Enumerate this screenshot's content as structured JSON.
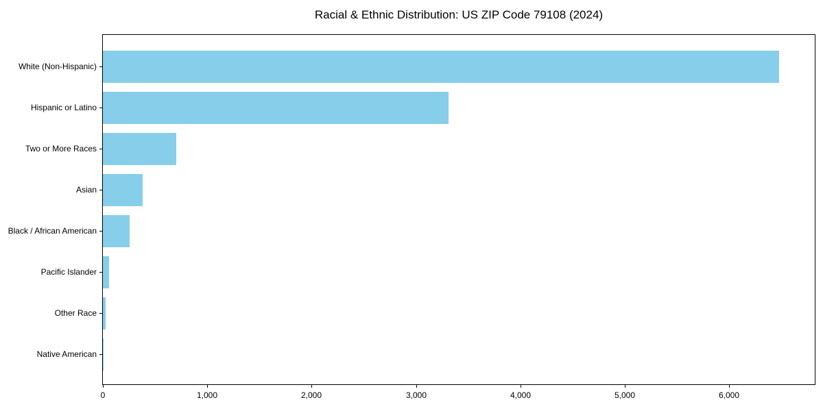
{
  "chart_data": {
    "type": "bar",
    "orientation": "horizontal",
    "title": "Racial & Ethnic Distribution: US ZIP Code 79108 (2024)",
    "categories": [
      "White (Non-Hispanic)",
      "Hispanic or Latino",
      "Two or More Races",
      "Asian",
      "Black / African American",
      "Pacific Islander",
      "Other Race",
      "Native American"
    ],
    "values": [
      6480,
      3310,
      700,
      380,
      256,
      59,
      26,
      7
    ],
    "xlabel": "",
    "ylabel": "",
    "xlim": [
      0,
      6820
    ],
    "x_ticks": [
      0,
      1000,
      2000,
      3000,
      4000,
      5000,
      6000
    ],
    "x_tick_labels": [
      "0",
      "1,000",
      "2,000",
      "3,000",
      "4,000",
      "5,000",
      "6,000"
    ],
    "bar_color": "#87CEEB",
    "text_color": "#000000",
    "grid": false,
    "legend": false
  }
}
